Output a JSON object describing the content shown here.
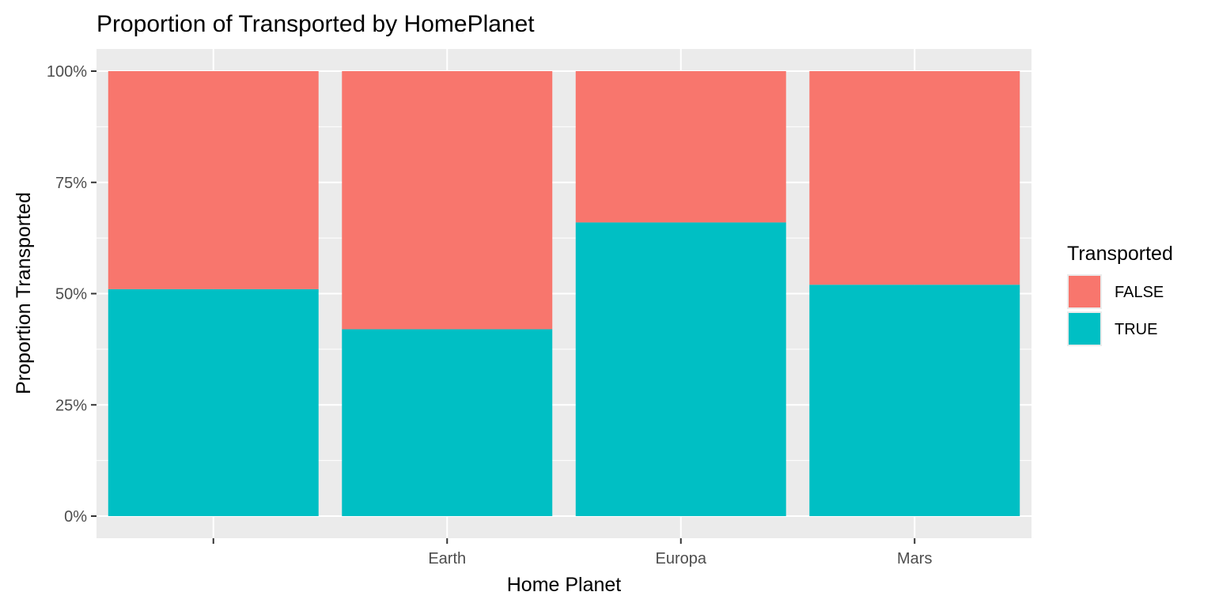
{
  "chart_data": {
    "type": "bar",
    "stacked": true,
    "title": "Proportion of Transported by HomePlanet",
    "xlabel": "Home Planet",
    "ylabel": "Proportion Transported",
    "categories": [
      "",
      "Earth",
      "Europa",
      "Mars"
    ],
    "series": [
      {
        "name": "FALSE",
        "color": "#F8766D",
        "values": [
          0.49,
          0.58,
          0.34,
          0.48
        ]
      },
      {
        "name": "TRUE",
        "color": "#00BFC4",
        "values": [
          0.51,
          0.42,
          0.66,
          0.52
        ]
      }
    ],
    "ylim": [
      0,
      1
    ],
    "yticks": [
      0,
      0.25,
      0.5,
      0.75,
      1
    ],
    "ytick_labels": [
      "0%",
      "25%",
      "50%",
      "75%",
      "100%"
    ],
    "grid": true,
    "panel_background": "#EBEBEB",
    "grid_color": "#FFFFFF",
    "legend": {
      "title": "Transported",
      "placement": "right",
      "order": [
        "FALSE",
        "TRUE"
      ]
    }
  }
}
